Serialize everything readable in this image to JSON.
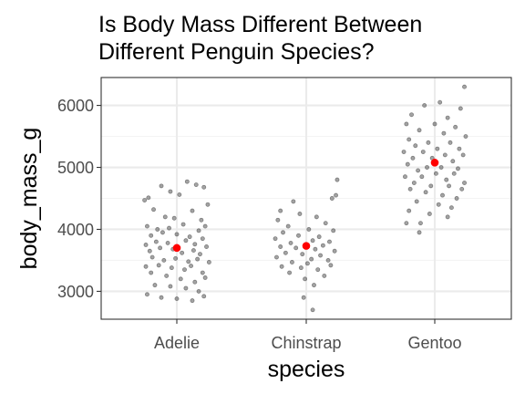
{
  "chart_data": {
    "type": "scatter",
    "title": "Is Body Mass Different Between Different Penguin Species?",
    "title_lines": [
      "Is Body Mass Different Between",
      "Different Penguin Species?"
    ],
    "xlabel": "species",
    "ylabel": "body_mass_g",
    "categories": [
      "Adelie",
      "Chinstrap",
      "Gentoo"
    ],
    "y_ticks": [
      3000,
      4000,
      5000,
      6000
    ],
    "y_tick_labels": [
      "3000",
      "4000",
      "5000",
      "6000"
    ],
    "ylim": [
      2550,
      6450
    ],
    "grid": true,
    "legend": "none",
    "colors": {
      "points": "#333333",
      "mean": "#ff0000",
      "panel_border": "#333333",
      "grid_major": "#ebebeb",
      "grid_minor": "#f4f4f4"
    },
    "mean_points": [
      {
        "category": "Adelie",
        "y": 3700
      },
      {
        "category": "Chinstrap",
        "y": 3733
      },
      {
        "category": "Gentoo",
        "y": 5076
      }
    ],
    "jitter_points": [
      {
        "category": "Adelie",
        "offset": -0.25,
        "y": 4470
      },
      {
        "category": "Adelie",
        "offset": -0.22,
        "y": 4510
      },
      {
        "category": "Adelie",
        "offset": -0.12,
        "y": 4700
      },
      {
        "category": "Adelie",
        "offset": -0.05,
        "y": 4610
      },
      {
        "category": "Adelie",
        "offset": 0.02,
        "y": 4560
      },
      {
        "category": "Adelie",
        "offset": 0.08,
        "y": 4770
      },
      {
        "category": "Adelie",
        "offset": 0.15,
        "y": 4720
      },
      {
        "category": "Adelie",
        "offset": 0.21,
        "y": 4680
      },
      {
        "category": "Adelie",
        "offset": 0.24,
        "y": 4400
      },
      {
        "category": "Adelie",
        "offset": -0.18,
        "y": 4320
      },
      {
        "category": "Adelie",
        "offset": -0.09,
        "y": 4200
      },
      {
        "category": "Adelie",
        "offset": 0.12,
        "y": 4300
      },
      {
        "category": "Adelie",
        "offset": -0.02,
        "y": 4180
      },
      {
        "category": "Adelie",
        "offset": 0.19,
        "y": 4150
      },
      {
        "category": "Adelie",
        "offset": -0.23,
        "y": 4050
      },
      {
        "category": "Adelie",
        "offset": -0.15,
        "y": 4000
      },
      {
        "category": "Adelie",
        "offset": -0.06,
        "y": 4020
      },
      {
        "category": "Adelie",
        "offset": 0.05,
        "y": 4080
      },
      {
        "category": "Adelie",
        "offset": 0.17,
        "y": 3980
      },
      {
        "category": "Adelie",
        "offset": 0.22,
        "y": 4050
      },
      {
        "category": "Adelie",
        "offset": -0.2,
        "y": 3900
      },
      {
        "category": "Adelie",
        "offset": -0.11,
        "y": 3950
      },
      {
        "category": "Adelie",
        "offset": 0.0,
        "y": 3920
      },
      {
        "category": "Adelie",
        "offset": 0.1,
        "y": 3880
      },
      {
        "category": "Adelie",
        "offset": 0.2,
        "y": 3850
      },
      {
        "category": "Adelie",
        "offset": -0.24,
        "y": 3750
      },
      {
        "category": "Adelie",
        "offset": -0.16,
        "y": 3800
      },
      {
        "category": "Adelie",
        "offset": -0.07,
        "y": 3780
      },
      {
        "category": "Adelie",
        "offset": 0.07,
        "y": 3820
      },
      {
        "category": "Adelie",
        "offset": 0.14,
        "y": 3760
      },
      {
        "category": "Adelie",
        "offset": 0.23,
        "y": 3720
      },
      {
        "category": "Adelie",
        "offset": -0.21,
        "y": 3650
      },
      {
        "category": "Adelie",
        "offset": -0.13,
        "y": 3700
      },
      {
        "category": "Adelie",
        "offset": -0.03,
        "y": 3680
      },
      {
        "category": "Adelie",
        "offset": 0.04,
        "y": 3620
      },
      {
        "category": "Adelie",
        "offset": 0.13,
        "y": 3660
      },
      {
        "category": "Adelie",
        "offset": 0.18,
        "y": 3600
      },
      {
        "category": "Adelie",
        "offset": -0.19,
        "y": 3550
      },
      {
        "category": "Adelie",
        "offset": -0.1,
        "y": 3500
      },
      {
        "category": "Adelie",
        "offset": -0.01,
        "y": 3530
      },
      {
        "category": "Adelie",
        "offset": 0.09,
        "y": 3480
      },
      {
        "category": "Adelie",
        "offset": 0.16,
        "y": 3520
      },
      {
        "category": "Adelie",
        "offset": 0.25,
        "y": 3470
      },
      {
        "category": "Adelie",
        "offset": -0.24,
        "y": 3400
      },
      {
        "category": "Adelie",
        "offset": -0.14,
        "y": 3420
      },
      {
        "category": "Adelie",
        "offset": -0.04,
        "y": 3380
      },
      {
        "category": "Adelie",
        "offset": 0.06,
        "y": 3350
      },
      {
        "category": "Adelie",
        "offset": 0.11,
        "y": 3410
      },
      {
        "category": "Adelie",
        "offset": 0.2,
        "y": 3300
      },
      {
        "category": "Adelie",
        "offset": -0.2,
        "y": 3300
      },
      {
        "category": "Adelie",
        "offset": -0.08,
        "y": 3250
      },
      {
        "category": "Adelie",
        "offset": 0.03,
        "y": 3200
      },
      {
        "category": "Adelie",
        "offset": 0.14,
        "y": 3150
      },
      {
        "category": "Adelie",
        "offset": 0.22,
        "y": 3220
      },
      {
        "category": "Adelie",
        "offset": -0.17,
        "y": 3100
      },
      {
        "category": "Adelie",
        "offset": -0.05,
        "y": 3080
      },
      {
        "category": "Adelie",
        "offset": 0.07,
        "y": 3050
      },
      {
        "category": "Adelie",
        "offset": 0.17,
        "y": 3000
      },
      {
        "category": "Adelie",
        "offset": -0.23,
        "y": 2950
      },
      {
        "category": "Adelie",
        "offset": -0.12,
        "y": 2900
      },
      {
        "category": "Adelie",
        "offset": 0.0,
        "y": 2880
      },
      {
        "category": "Adelie",
        "offset": 0.12,
        "y": 2850
      },
      {
        "category": "Adelie",
        "offset": 0.21,
        "y": 2920
      },
      {
        "category": "Chinstrap",
        "offset": 0.24,
        "y": 4800
      },
      {
        "category": "Chinstrap",
        "offset": 0.23,
        "y": 4550
      },
      {
        "category": "Chinstrap",
        "offset": 0.2,
        "y": 4500
      },
      {
        "category": "Chinstrap",
        "offset": -0.1,
        "y": 4450
      },
      {
        "category": "Chinstrap",
        "offset": -0.2,
        "y": 4300
      },
      {
        "category": "Chinstrap",
        "offset": -0.05,
        "y": 4250
      },
      {
        "category": "Chinstrap",
        "offset": 0.08,
        "y": 4200
      },
      {
        "category": "Chinstrap",
        "offset": -0.22,
        "y": 4150
      },
      {
        "category": "Chinstrap",
        "offset": 0.15,
        "y": 4100
      },
      {
        "category": "Chinstrap",
        "offset": -0.14,
        "y": 4050
      },
      {
        "category": "Chinstrap",
        "offset": 0.02,
        "y": 4000
      },
      {
        "category": "Chinstrap",
        "offset": 0.21,
        "y": 3980
      },
      {
        "category": "Chinstrap",
        "offset": -0.18,
        "y": 3950
      },
      {
        "category": "Chinstrap",
        "offset": -0.06,
        "y": 3900
      },
      {
        "category": "Chinstrap",
        "offset": 0.1,
        "y": 3880
      },
      {
        "category": "Chinstrap",
        "offset": -0.24,
        "y": 3850
      },
      {
        "category": "Chinstrap",
        "offset": 0.05,
        "y": 3820
      },
      {
        "category": "Chinstrap",
        "offset": 0.18,
        "y": 3800
      },
      {
        "category": "Chinstrap",
        "offset": -0.12,
        "y": 3780
      },
      {
        "category": "Chinstrap",
        "offset": 0.0,
        "y": 3760
      },
      {
        "category": "Chinstrap",
        "offset": 0.13,
        "y": 3740
      },
      {
        "category": "Chinstrap",
        "offset": -0.2,
        "y": 3720
      },
      {
        "category": "Chinstrap",
        "offset": -0.08,
        "y": 3700
      },
      {
        "category": "Chinstrap",
        "offset": 0.07,
        "y": 3680
      },
      {
        "category": "Chinstrap",
        "offset": 0.22,
        "y": 3650
      },
      {
        "category": "Chinstrap",
        "offset": -0.16,
        "y": 3620
      },
      {
        "category": "Chinstrap",
        "offset": -0.03,
        "y": 3600
      },
      {
        "category": "Chinstrap",
        "offset": 0.11,
        "y": 3580
      },
      {
        "category": "Chinstrap",
        "offset": -0.23,
        "y": 3550
      },
      {
        "category": "Chinstrap",
        "offset": 0.04,
        "y": 3520
      },
      {
        "category": "Chinstrap",
        "offset": 0.17,
        "y": 3500
      },
      {
        "category": "Chinstrap",
        "offset": -0.11,
        "y": 3470
      },
      {
        "category": "Chinstrap",
        "offset": 0.01,
        "y": 3450
      },
      {
        "category": "Chinstrap",
        "offset": 0.19,
        "y": 3420
      },
      {
        "category": "Chinstrap",
        "offset": -0.19,
        "y": 3400
      },
      {
        "category": "Chinstrap",
        "offset": -0.04,
        "y": 3380
      },
      {
        "category": "Chinstrap",
        "offset": 0.09,
        "y": 3350
      },
      {
        "category": "Chinstrap",
        "offset": -0.13,
        "y": 3300
      },
      {
        "category": "Chinstrap",
        "offset": 0.14,
        "y": 3250
      },
      {
        "category": "Chinstrap",
        "offset": -0.01,
        "y": 3200
      },
      {
        "category": "Chinstrap",
        "offset": 0.06,
        "y": 3100
      },
      {
        "category": "Chinstrap",
        "offset": -0.02,
        "y": 2900
      },
      {
        "category": "Chinstrap",
        "offset": 0.05,
        "y": 2700
      },
      {
        "category": "Gentoo",
        "offset": 0.23,
        "y": 6300
      },
      {
        "category": "Gentoo",
        "offset": 0.04,
        "y": 6050
      },
      {
        "category": "Gentoo",
        "offset": -0.08,
        "y": 6000
      },
      {
        "category": "Gentoo",
        "offset": 0.2,
        "y": 5950
      },
      {
        "category": "Gentoo",
        "offset": -0.18,
        "y": 5850
      },
      {
        "category": "Gentoo",
        "offset": 0.1,
        "y": 5800
      },
      {
        "category": "Gentoo",
        "offset": -0.22,
        "y": 5700
      },
      {
        "category": "Gentoo",
        "offset": 0.0,
        "y": 5700
      },
      {
        "category": "Gentoo",
        "offset": 0.16,
        "y": 5650
      },
      {
        "category": "Gentoo",
        "offset": -0.12,
        "y": 5600
      },
      {
        "category": "Gentoo",
        "offset": 0.07,
        "y": 5550
      },
      {
        "category": "Gentoo",
        "offset": 0.24,
        "y": 5500
      },
      {
        "category": "Gentoo",
        "offset": -0.2,
        "y": 5450
      },
      {
        "category": "Gentoo",
        "offset": -0.05,
        "y": 5400
      },
      {
        "category": "Gentoo",
        "offset": 0.12,
        "y": 5400
      },
      {
        "category": "Gentoo",
        "offset": -0.15,
        "y": 5350
      },
      {
        "category": "Gentoo",
        "offset": 0.02,
        "y": 5300
      },
      {
        "category": "Gentoo",
        "offset": 0.19,
        "y": 5300
      },
      {
        "category": "Gentoo",
        "offset": -0.24,
        "y": 5250
      },
      {
        "category": "Gentoo",
        "offset": -0.09,
        "y": 5250
      },
      {
        "category": "Gentoo",
        "offset": 0.08,
        "y": 5200
      },
      {
        "category": "Gentoo",
        "offset": 0.22,
        "y": 5200
      },
      {
        "category": "Gentoo",
        "offset": -0.17,
        "y": 5150
      },
      {
        "category": "Gentoo",
        "offset": -0.02,
        "y": 5150
      },
      {
        "category": "Gentoo",
        "offset": 0.14,
        "y": 5100
      },
      {
        "category": "Gentoo",
        "offset": -0.21,
        "y": 5050
      },
      {
        "category": "Gentoo",
        "offset": -0.06,
        "y": 5000
      },
      {
        "category": "Gentoo",
        "offset": 0.05,
        "y": 5000
      },
      {
        "category": "Gentoo",
        "offset": 0.18,
        "y": 4980
      },
      {
        "category": "Gentoo",
        "offset": -0.13,
        "y": 4950
      },
      {
        "category": "Gentoo",
        "offset": 0.01,
        "y": 4900
      },
      {
        "category": "Gentoo",
        "offset": 0.15,
        "y": 4900
      },
      {
        "category": "Gentoo",
        "offset": -0.23,
        "y": 4850
      },
      {
        "category": "Gentoo",
        "offset": -0.1,
        "y": 4850
      },
      {
        "category": "Gentoo",
        "offset": 0.09,
        "y": 4800
      },
      {
        "category": "Gentoo",
        "offset": 0.23,
        "y": 4750
      },
      {
        "category": "Gentoo",
        "offset": -0.16,
        "y": 4750
      },
      {
        "category": "Gentoo",
        "offset": -0.03,
        "y": 4700
      },
      {
        "category": "Gentoo",
        "offset": 0.11,
        "y": 4700
      },
      {
        "category": "Gentoo",
        "offset": 0.21,
        "y": 4650
      },
      {
        "category": "Gentoo",
        "offset": -0.19,
        "y": 4650
      },
      {
        "category": "Gentoo",
        "offset": -0.07,
        "y": 4600
      },
      {
        "category": "Gentoo",
        "offset": 0.06,
        "y": 4550
      },
      {
        "category": "Gentoo",
        "offset": 0.17,
        "y": 4500
      },
      {
        "category": "Gentoo",
        "offset": -0.14,
        "y": 4450
      },
      {
        "category": "Gentoo",
        "offset": 0.03,
        "y": 4400
      },
      {
        "category": "Gentoo",
        "offset": 0.13,
        "y": 4350
      },
      {
        "category": "Gentoo",
        "offset": -0.2,
        "y": 4300
      },
      {
        "category": "Gentoo",
        "offset": -0.04,
        "y": 4250
      },
      {
        "category": "Gentoo",
        "offset": 0.1,
        "y": 4200
      },
      {
        "category": "Gentoo",
        "offset": -0.11,
        "y": 4100
      },
      {
        "category": "Gentoo",
        "offset": -0.22,
        "y": 4100
      },
      {
        "category": "Gentoo",
        "offset": -0.12,
        "y": 3950
      }
    ]
  }
}
